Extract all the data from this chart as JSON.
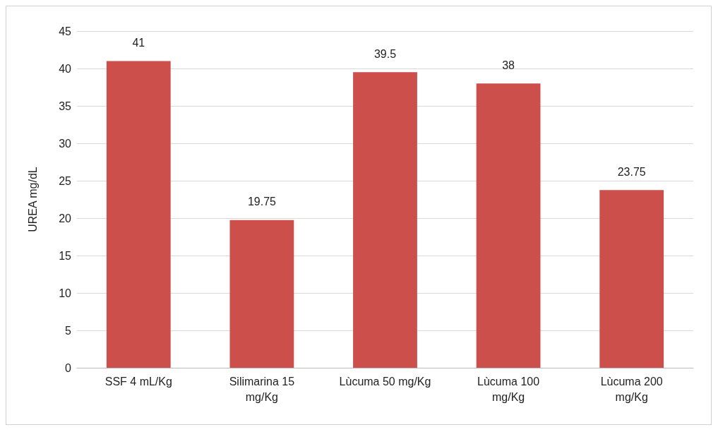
{
  "chart_data": {
    "type": "bar",
    "ylabel": "UREA mg/dL",
    "categories": [
      "SSF 4 mL/Kg",
      "Silimarina 15 mg/Kg",
      "Lùcuma 50 mg/Kg",
      "Lùcuma 100 mg/Kg",
      "Lùcuma 200 mg/Kg"
    ],
    "values": [
      41,
      19.75,
      39.5,
      38,
      23.75
    ],
    "color": "#cd4f4c",
    "ylim": [
      0,
      45
    ],
    "yticks": [
      0,
      5,
      10,
      15,
      20,
      25,
      30,
      35,
      40,
      45
    ],
    "grid": "y",
    "data_labels": true
  }
}
